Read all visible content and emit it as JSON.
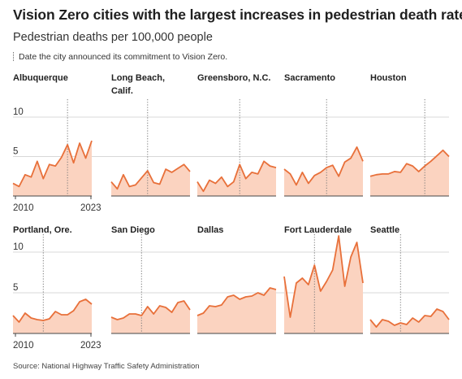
{
  "header": {
    "title": "Vision Zero cities with the largest increases in pedestrian death rates",
    "subtitle": "Pedestrian deaths per 100,000 people",
    "legend_note": "Date the city announced its commitment to Vision Zero."
  },
  "footer": {
    "source": "Source: National Highway Traffic Safety Administration"
  },
  "colors": {
    "line": "#e8703a",
    "area": "#fbd3c0",
    "gridline": "#d8d8d8",
    "marker": "#777777"
  },
  "chart_data": {
    "type": "area",
    "note": "Small multiples, years 2010–2023",
    "x": [
      2010,
      2011,
      2012,
      2013,
      2014,
      2015,
      2016,
      2017,
      2018,
      2019,
      2020,
      2021,
      2022,
      2023
    ],
    "ylim": [
      0,
      12
    ],
    "yticks": [
      0,
      5,
      10
    ],
    "xtick_labels": [
      "2010",
      "2023"
    ],
    "cities": [
      {
        "name": "Albuquerque",
        "vision_zero_year": 2019,
        "values": [
          1.6,
          1.2,
          2.7,
          2.4,
          4.4,
          2.2,
          4.0,
          3.8,
          4.9,
          6.5,
          4.2,
          6.7,
          4.8,
          7.0
        ]
      },
      {
        "name": "Long Beach, Calif.",
        "vision_zero_year": 2016,
        "values": [
          1.8,
          0.9,
          2.7,
          1.2,
          1.4,
          2.3,
          3.2,
          1.7,
          1.5,
          3.4,
          3.0,
          3.5,
          4.0,
          3.1
        ]
      },
      {
        "name": "Greensboro, N.C.",
        "vision_zero_year": 2017,
        "values": [
          1.8,
          0.6,
          2.0,
          1.6,
          2.4,
          1.2,
          1.8,
          4.0,
          2.2,
          3.0,
          2.8,
          4.4,
          3.8,
          3.6
        ]
      },
      {
        "name": "Sacramento",
        "vision_zero_year": 2017,
        "values": [
          3.4,
          2.8,
          1.4,
          3.0,
          1.6,
          2.6,
          3.0,
          3.6,
          3.9,
          2.5,
          4.3,
          4.8,
          6.2,
          4.4
        ]
      },
      {
        "name": "Houston",
        "vision_zero_year": 2019,
        "values": [
          2.5,
          2.7,
          2.8,
          2.8,
          3.1,
          3.0,
          4.1,
          3.8,
          3.1,
          3.8,
          4.4,
          5.1,
          5.8,
          5.0
        ]
      },
      {
        "name": "Portland, Ore.",
        "vision_zero_year": 2015,
        "values": [
          2.2,
          1.4,
          2.5,
          1.9,
          1.7,
          1.6,
          1.8,
          2.7,
          2.3,
          2.3,
          2.8,
          3.9,
          4.2,
          3.6
        ]
      },
      {
        "name": "San Diego",
        "vision_zero_year": 2015,
        "values": [
          2.0,
          1.7,
          1.9,
          2.4,
          2.4,
          2.2,
          3.3,
          2.4,
          3.4,
          3.2,
          2.6,
          3.8,
          4.0,
          2.9
        ]
      },
      {
        "name": "Dallas",
        "vision_zero_year": null,
        "values": [
          2.2,
          2.5,
          3.4,
          3.3,
          3.5,
          4.5,
          4.7,
          4.2,
          4.5,
          4.6,
          5.0,
          4.7,
          5.6,
          5.4
        ]
      },
      {
        "name": "Fort Lauderdale",
        "vision_zero_year": 2015,
        "values": [
          7.0,
          2.0,
          6.2,
          6.8,
          6.0,
          8.4,
          5.2,
          6.4,
          7.8,
          12.0,
          5.8,
          9.4,
          11.2,
          6.2
        ]
      },
      {
        "name": "Seattle",
        "vision_zero_year": 2015,
        "values": [
          1.7,
          0.8,
          1.7,
          1.5,
          1.0,
          1.3,
          1.1,
          1.9,
          1.4,
          2.2,
          2.1,
          3.0,
          2.7,
          1.7
        ]
      }
    ]
  }
}
